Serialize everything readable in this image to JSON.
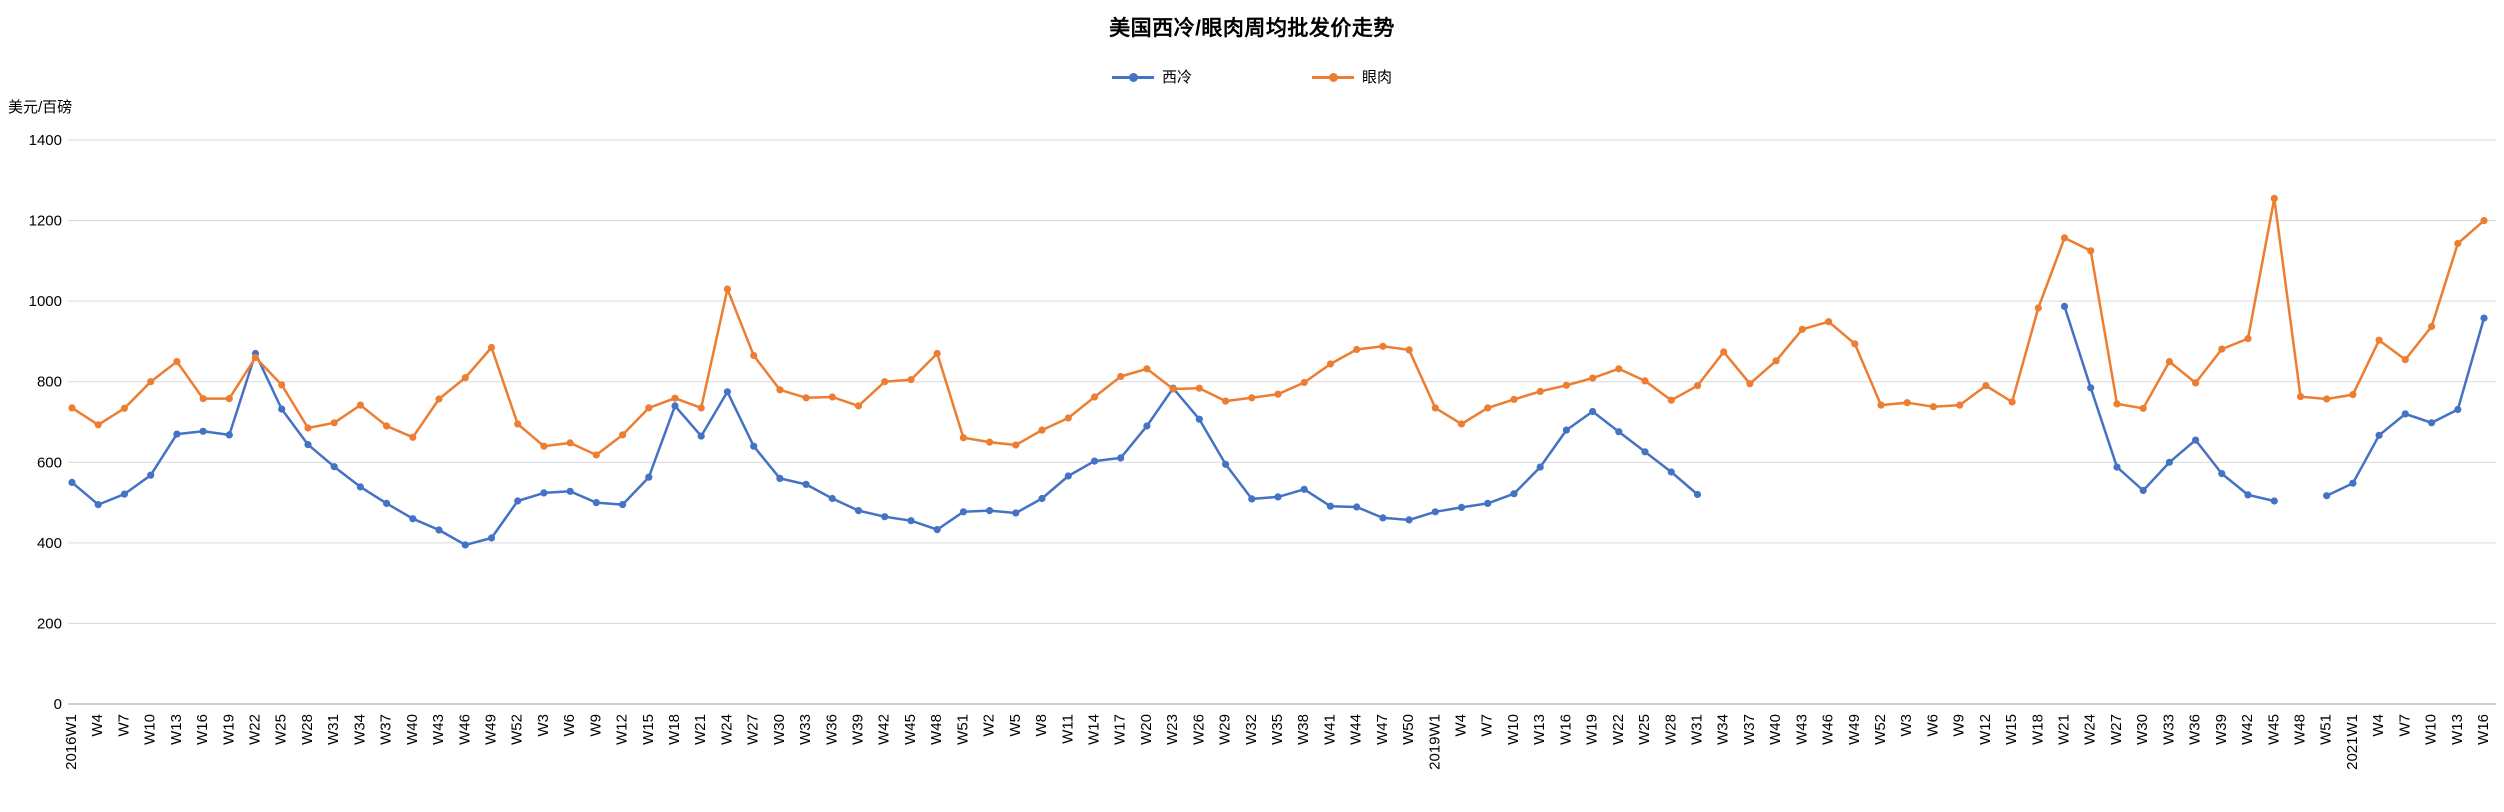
{
  "title": "美国西冷/眼肉周均批发价走势",
  "y_axis_unit": "美元/百磅",
  "legend": [
    {
      "label": "西冷",
      "color": "#4472C4"
    },
    {
      "label": "眼肉",
      "color": "#ED7D31"
    }
  ],
  "colors": {
    "gridline": "#D9D9D9",
    "axis_line": "#A6A6A6",
    "text": "#000000"
  },
  "chart_data": {
    "type": "line",
    "title": "美国西冷/眼肉周均批发价走势",
    "xlabel": "",
    "ylabel": "美元/百磅",
    "ylim": [
      0,
      1400
    ],
    "y_ticks": [
      0,
      200,
      400,
      600,
      800,
      1000,
      1200,
      1400
    ],
    "grid": true,
    "legend_position": "top-center",
    "marker": "circle",
    "x_note": "weekly series labeled every 3rd week, 2016W1 - 2021W16; null = missing data gap",
    "categories": [
      "2016W1",
      "W4",
      "W7",
      "W10",
      "W13",
      "W16",
      "W19",
      "W22",
      "W25",
      "W28",
      "W31",
      "W34",
      "W37",
      "W40",
      "W43",
      "W46",
      "W49",
      "W52",
      "W3",
      "W6",
      "W9",
      "W12",
      "W15",
      "W18",
      "W21",
      "W24",
      "W27",
      "W30",
      "W33",
      "W36",
      "W39",
      "W42",
      "W45",
      "W48",
      "W51",
      "W2",
      "W5",
      "W8",
      "W11",
      "W14",
      "W17",
      "W20",
      "W23",
      "W26",
      "W29",
      "W32",
      "W35",
      "W38",
      "W41",
      "W44",
      "W47",
      "W50",
      "2019W1",
      "W4",
      "W7",
      "W10",
      "W13",
      "W16",
      "W19",
      "W22",
      "W25",
      "W28",
      "W31",
      "W34",
      "W37",
      "W40",
      "W43",
      "W46",
      "W49",
      "W52",
      "W3",
      "W6",
      "W9",
      "W12",
      "W15",
      "W18",
      "W21",
      "W24",
      "W27",
      "W30",
      "W33",
      "W36",
      "W39",
      "W42",
      "W45",
      "W48",
      "W51",
      "2021W1",
      "W4",
      "W7",
      "W10",
      "W13",
      "W16"
    ],
    "series": [
      {
        "name": "西冷",
        "color": "#4472C4",
        "values": [
          550,
          495,
          521,
          568,
          670,
          677,
          668,
          870,
          732,
          644,
          589,
          539,
          498,
          460,
          432,
          395,
          412,
          504,
          524,
          528,
          500,
          495,
          563,
          740,
          665,
          775,
          640,
          560,
          545,
          510,
          480,
          465,
          455,
          433,
          477,
          480,
          474,
          510,
          566,
          603,
          611,
          690,
          784,
          707,
          595,
          509,
          514,
          533,
          491,
          489,
          462,
          457,
          477,
          488,
          498,
          522,
          588,
          680,
          726,
          676,
          626,
          576,
          520,
          null,
          null,
          null,
          null,
          null,
          null,
          null,
          null,
          null,
          null,
          null,
          null,
          null,
          987,
          785,
          588,
          530,
          600,
          655,
          572,
          519,
          504,
          null,
          517,
          548,
          667,
          720,
          698,
          731,
          958
        ]
      },
      {
        "name": "眼肉",
        "color": "#ED7D31",
        "values": [
          735,
          693,
          734,
          800,
          850,
          758,
          758,
          860,
          792,
          685,
          698,
          742,
          690,
          662,
          757,
          810,
          885,
          695,
          640,
          648,
          618,
          668,
          735,
          759,
          735,
          1030,
          865,
          780,
          760,
          762,
          740,
          800,
          805,
          870,
          661,
          650,
          643,
          680,
          710,
          762,
          813,
          832,
          782,
          784,
          752,
          760,
          769,
          798,
          844,
          880,
          888,
          879,
          735,
          695,
          735,
          756,
          776,
          791,
          809,
          832,
          802,
          754,
          790,
          874,
          795,
          852,
          930,
          949,
          894,
          742,
          748,
          738,
          742,
          790,
          750,
          983,
          1157,
          1125,
          745,
          734,
          850,
          797,
          881,
          907,
          1255,
          763,
          757,
          768,
          903,
          855,
          937,
          1143,
          1200
        ]
      }
    ]
  }
}
